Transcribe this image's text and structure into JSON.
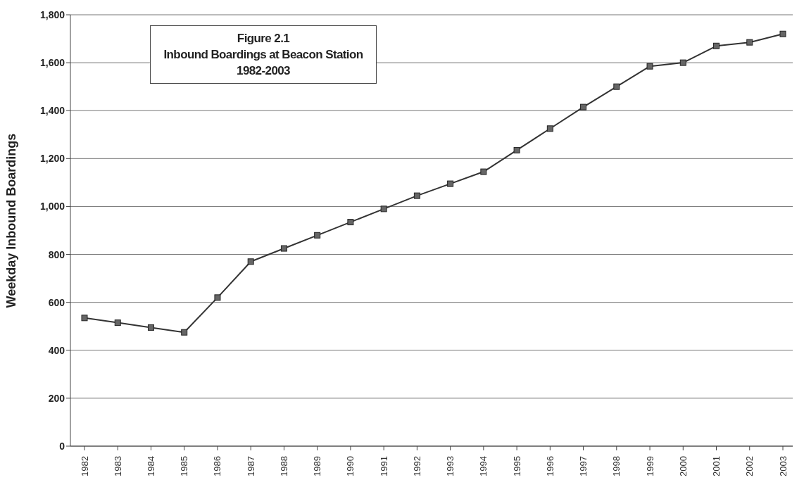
{
  "chart_data": {
    "type": "line",
    "title": "Figure 2.1",
    "subtitle": "Inbound Boardings at Beacon Station 1982-2003",
    "ylabel": "Weekday Inbound Boardings",
    "categories": [
      "1982",
      "1983",
      "1984",
      "1985",
      "1986",
      "1987",
      "1988",
      "1989",
      "1990",
      "1991",
      "1992",
      "1993",
      "1994",
      "1995",
      "1996",
      "1997",
      "1998",
      "1999",
      "2000",
      "2001",
      "2002",
      "2003"
    ],
    "series": [
      {
        "color": "#333333",
        "values": [
          535,
          515,
          495,
          475,
          620,
          770,
          825,
          880,
          935,
          990,
          1045,
          1095,
          1145,
          1235,
          1325,
          1415,
          1500,
          1585,
          1600,
          1670,
          1685,
          1720
        ]
      }
    ],
    "ylim": [
      0,
      1800
    ],
    "yticks": [
      {
        "value": 0,
        "label": "0"
      },
      {
        "value": 200,
        "label": "200"
      },
      {
        "value": 400,
        "label": "400"
      },
      {
        "value": 600,
        "label": "600"
      },
      {
        "value": 800,
        "label": "800"
      },
      {
        "value": 1000,
        "label": "1,000"
      },
      {
        "value": 1200,
        "label": "1,200"
      },
      {
        "value": 1400,
        "label": "1,400"
      },
      {
        "value": 1600,
        "label": "1,600"
      },
      {
        "value": 1800,
        "label": "1,800"
      }
    ],
    "grid": "y",
    "marker": "square",
    "line_style": "solid"
  }
}
